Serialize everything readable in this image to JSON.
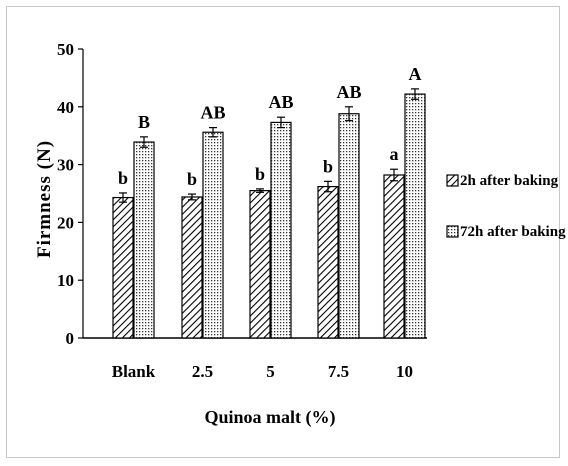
{
  "chart_data": {
    "type": "bar",
    "title": "",
    "xlabel": "Quinoa malt (%)",
    "ylabel": "Firmness (N)",
    "ylim": [
      0,
      50
    ],
    "yticks": [
      "0",
      "10",
      "20",
      "30",
      "40",
      "50"
    ],
    "categories": [
      "Blank",
      "2.5",
      "5",
      "7.5",
      "10"
    ],
    "series": [
      {
        "name": "2h after baking",
        "values": [
          24.3,
          24.4,
          25.5,
          26.2,
          28.2
        ],
        "errors": [
          0.8,
          0.5,
          0.3,
          0.9,
          1.0
        ],
        "labels": [
          "b",
          "b",
          "b",
          "b",
          "a"
        ],
        "fill": "diagonal-hatch"
      },
      {
        "name": "72h after baking",
        "values": [
          33.9,
          35.6,
          37.3,
          38.8,
          42.2
        ],
        "errors": [
          0.9,
          0.8,
          0.9,
          1.2,
          0.9
        ],
        "labels": [
          "B",
          "AB",
          "AB",
          "AB",
          "A"
        ],
        "fill": "dotted"
      }
    ],
    "grid": false,
    "legend_position": "right"
  },
  "colors": {
    "axis": "#000000",
    "border": "#c8c8c8",
    "bar_outline": "#000000"
  }
}
